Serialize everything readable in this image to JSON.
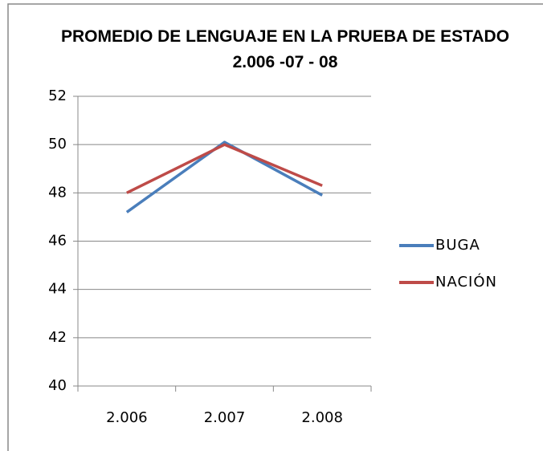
{
  "chart_data": {
    "type": "line",
    "title": "PROMEDIO DE LENGUAJE EN LA PRUEBA DE ESTADO 2.006 -07 - 08",
    "categories": [
      "2.006",
      "2.007",
      "2.008"
    ],
    "series": [
      {
        "name": "BUGA",
        "color": "#4a7ebb",
        "values": [
          47.2,
          50.1,
          47.9
        ]
      },
      {
        "name": "NACIÓN",
        "color": "#be4b48",
        "values": [
          48.0,
          50.0,
          48.3
        ]
      }
    ],
    "ylim": [
      40,
      52
    ],
    "yticks": [
      40,
      42,
      44,
      46,
      48,
      50,
      52
    ],
    "grid": true,
    "legend": "right"
  }
}
